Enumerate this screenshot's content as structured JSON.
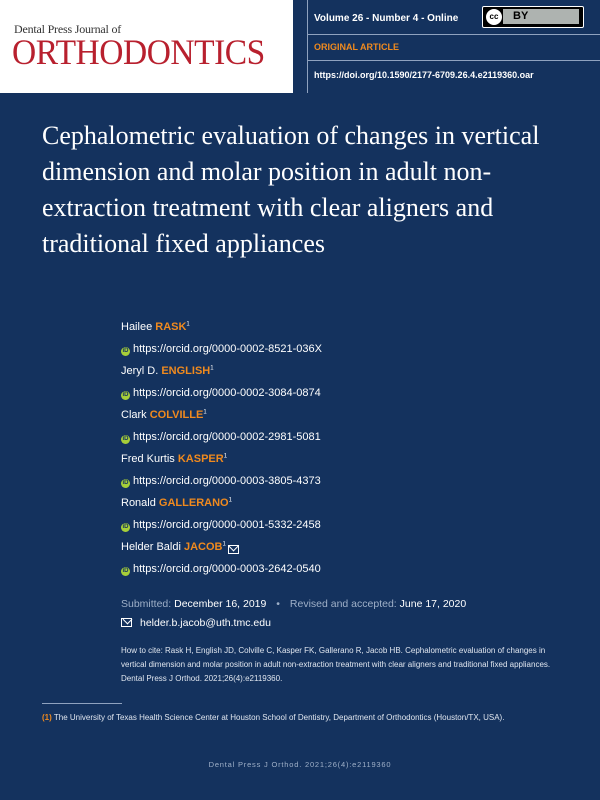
{
  "header": {
    "journal_small": "Dental Press Journal of",
    "journal_big": "ORTHODONTICS",
    "volume": "Volume 26 - Number 4 - Online",
    "article_type": "ORIGINAL ARTICLE",
    "doi": "https://doi.org/10.1590/2177-6709.26.4.e2119360.oar",
    "license_cc": "cc",
    "license_by": "BY"
  },
  "title": "Cephalometric evaluation of changes in vertical dimension and molar position in adult non-extraction treatment with clear aligners and traditional fixed appliances",
  "authors": [
    {
      "first": "Hailee",
      "last": "RASK",
      "sup": "1",
      "orcid": "https://orcid.org/0000-0002-8521-036X",
      "email": false
    },
    {
      "first": "Jeryl D.",
      "last": "ENGLISH",
      "sup": "1",
      "orcid": "https://orcid.org/0000-0002-3084-0874",
      "email": false
    },
    {
      "first": "Clark",
      "last": "COLVILLE",
      "sup": "1",
      "orcid": "https://orcid.org/0000-0002-2981-5081",
      "email": false
    },
    {
      "first": "Fred Kurtis",
      "last": "KASPER",
      "sup": "1",
      "orcid": "https://orcid.org/0000-0003-3805-4373",
      "email": false
    },
    {
      "first": "Ronald",
      "last": "GALLERANO",
      "sup": "1",
      "orcid": "https://orcid.org/0000-0001-5332-2458",
      "email": false
    },
    {
      "first": "Helder Baldi",
      "last": "JACOB",
      "sup": "1",
      "orcid": "https://orcid.org/0000-0003-2642-0540",
      "email": true
    }
  ],
  "orcid_icon": "iD",
  "dates": {
    "submitted_label": "Submitted:",
    "submitted": "December 16, 2019",
    "separator": "•",
    "revised_label": "Revised and accepted:",
    "revised": "June 17, 2020"
  },
  "email": "helder.b.jacob@uth.tmc.edu",
  "citation": "How to cite: Rask H, English JD, Colville C, Kasper FK, Gallerano R, Jacob HB. Cephalometric evaluation of changes in vertical dimension and molar position in adult non-extraction treatment with clear aligners and traditional fixed appliances. Dental Press J Orthod. 2021;26(4):e2119360.",
  "affiliation": {
    "num": "(1)",
    "text": "The University of Texas Health Science Center at Houston School of Dentistry, Department of Orthodontics (Houston/TX, USA)."
  },
  "footer": "Dental Press J Orthod. 2021;26(4):e2119360",
  "colors": {
    "background": "#14325e",
    "accent": "#f08a1e",
    "logo_red": "#b8202e",
    "orcid_green": "#a6ce39"
  }
}
